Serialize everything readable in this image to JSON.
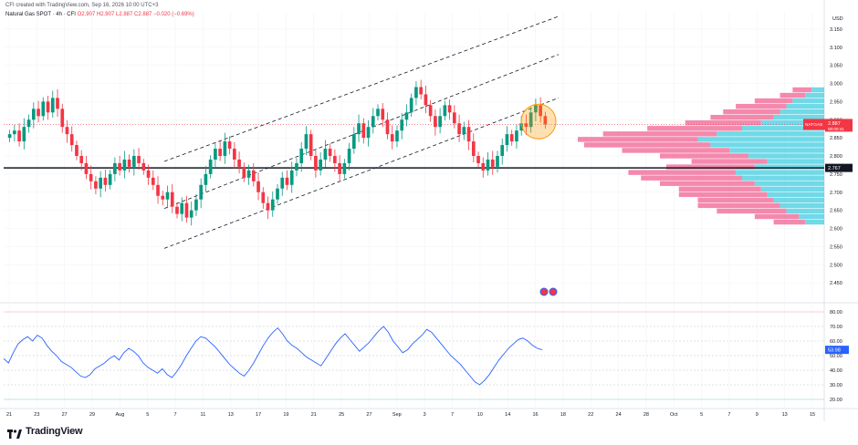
{
  "header": {
    "created": "CFI created with TradingView.com, Sep 16, 2026 10:00 UTC+3",
    "symbol": "Natural Gas SPOT · 4h · CFI",
    "ohlc": {
      "o": "O2.907",
      "h": "H2.907",
      "l": "L2.887",
      "c": "C2.887",
      "chg": "−0.020 (−0.69%)"
    }
  },
  "footer": {
    "logo_text": "TradingView"
  },
  "colors": {
    "up": "#089981",
    "down": "#f23645",
    "rsi": "#2962ff",
    "vp_up": "#4dd0e1",
    "vp_down": "#f06292",
    "channel": "#131722",
    "highlight": "#ff9800"
  },
  "chart_data": [
    {
      "type": "candlestick",
      "currency": "USD",
      "ylim": [
        2.4,
        3.2
      ],
      "y_ticks": [
        "3.150",
        "3.100",
        "3.050",
        "3.000",
        "2.950",
        "2.900",
        "2.850",
        "2.800",
        "2.750",
        "2.700",
        "2.650",
        "2.600",
        "2.550",
        "2.500",
        "2.450"
      ],
      "x_ticks": [
        "21",
        "23",
        "27",
        "29",
        "Aug",
        "5",
        "7",
        "11",
        "13",
        "17",
        "19",
        "21",
        "25",
        "27",
        "Sep",
        "3",
        "7",
        "10",
        "14",
        "16",
        "18",
        "22",
        "24",
        "28",
        "Oct",
        "5",
        "7",
        "9",
        "13",
        "15"
      ],
      "last_price": {
        "symbol": "NATGAS",
        "value": "2.887",
        "countdown": "00:00:41"
      },
      "horizontal_level": {
        "value": "2.767"
      },
      "channel_lines": [
        {
          "name": "upper",
          "from": [
            0.0,
            2.785
          ],
          "to": [
            1.0,
            3.185
          ]
        },
        {
          "name": "middle",
          "from": [
            0.0,
            2.655
          ],
          "to": [
            1.0,
            3.08
          ]
        },
        {
          "name": "lower",
          "from": [
            0.0,
            2.545
          ],
          "to": [
            1.0,
            2.96
          ]
        }
      ],
      "highlight_circle": {
        "center_price": 2.905
      },
      "series_close": [
        2.86,
        2.87,
        2.84,
        2.88,
        2.9,
        2.93,
        2.91,
        2.95,
        2.92,
        2.96,
        2.93,
        2.88,
        2.86,
        2.83,
        2.8,
        2.78,
        2.75,
        2.73,
        2.71,
        2.74,
        2.72,
        2.75,
        2.78,
        2.76,
        2.79,
        2.77,
        2.8,
        2.78,
        2.76,
        2.74,
        2.72,
        2.69,
        2.68,
        2.7,
        2.66,
        2.64,
        2.67,
        2.63,
        2.65,
        2.68,
        2.72,
        2.75,
        2.79,
        2.82,
        2.8,
        2.84,
        2.82,
        2.79,
        2.77,
        2.74,
        2.76,
        2.73,
        2.7,
        2.67,
        2.65,
        2.68,
        2.71,
        2.74,
        2.72,
        2.76,
        2.78,
        2.82,
        2.86,
        2.8,
        2.76,
        2.79,
        2.82,
        2.8,
        2.78,
        2.75,
        2.78,
        2.82,
        2.86,
        2.89,
        2.85,
        2.88,
        2.91,
        2.93,
        2.9,
        2.86,
        2.84,
        2.87,
        2.9,
        2.92,
        2.96,
        2.99,
        2.97,
        2.94,
        2.91,
        2.88,
        2.91,
        2.94,
        2.92,
        2.89,
        2.86,
        2.88,
        2.84,
        2.8,
        2.78,
        2.76,
        2.79,
        2.77,
        2.8,
        2.83,
        2.86,
        2.84,
        2.87,
        2.89,
        2.88,
        2.92,
        2.94,
        2.91,
        2.887
      ],
      "volume_profile": {
        "price_range": [
          2.61,
          2.99
        ],
        "rows": [
          [
            3,
            5
          ],
          [
            4,
            7
          ],
          [
            6,
            11
          ],
          [
            7,
            13
          ],
          [
            8,
            12
          ],
          [
            9,
            14
          ],
          [
            10,
            13
          ],
          [
            11,
            15
          ],
          [
            13,
            16
          ],
          [
            14,
            17
          ],
          [
            11,
            14
          ],
          [
            9,
            12
          ],
          [
            12,
            14
          ],
          [
            15,
            17
          ],
          [
            18,
            20
          ],
          [
            20,
            19
          ],
          [
            17,
            18
          ],
          [
            13,
            15
          ],
          [
            10,
            12
          ],
          [
            8,
            10
          ],
          [
            7,
            9
          ],
          [
            6,
            8
          ],
          [
            5,
            6
          ],
          [
            3,
            4
          ],
          [
            2,
            3
          ]
        ]
      }
    },
    {
      "type": "line",
      "name": "RSI",
      "ylim": [
        15,
        85
      ],
      "y_ticks": [
        "80.00",
        "70.00",
        "60.00",
        "50.00",
        "40.00",
        "30.00",
        "20.00"
      ],
      "levels": [
        {
          "value": 80
        },
        {
          "value": 70
        },
        {
          "value": 60
        },
        {
          "value": 50
        },
        {
          "value": 40
        },
        {
          "value": 30
        },
        {
          "value": 20
        }
      ],
      "last_value": "53.98",
      "values": [
        48,
        45,
        52,
        58,
        61,
        63,
        60,
        64,
        62,
        57,
        53,
        50,
        46,
        44,
        42,
        39,
        36,
        35,
        37,
        41,
        43,
        45,
        48,
        50,
        47,
        52,
        55,
        53,
        50,
        45,
        42,
        40,
        38,
        41,
        37,
        35,
        39,
        44,
        50,
        55,
        60,
        63,
        62,
        59,
        56,
        52,
        48,
        44,
        41,
        38,
        36,
        40,
        45,
        51,
        57,
        62,
        66,
        69,
        65,
        60,
        57,
        55,
        52,
        49,
        47,
        45,
        43,
        48,
        53,
        58,
        62,
        65,
        61,
        57,
        53,
        56,
        59,
        63,
        67,
        70,
        66,
        60,
        56,
        52,
        54,
        58,
        61,
        64,
        68,
        66,
        62,
        58,
        54,
        50,
        47,
        44,
        40,
        36,
        32,
        30,
        33,
        37,
        42,
        47,
        51,
        55,
        58,
        61,
        62,
        60,
        57,
        55,
        53.98
      ]
    }
  ]
}
